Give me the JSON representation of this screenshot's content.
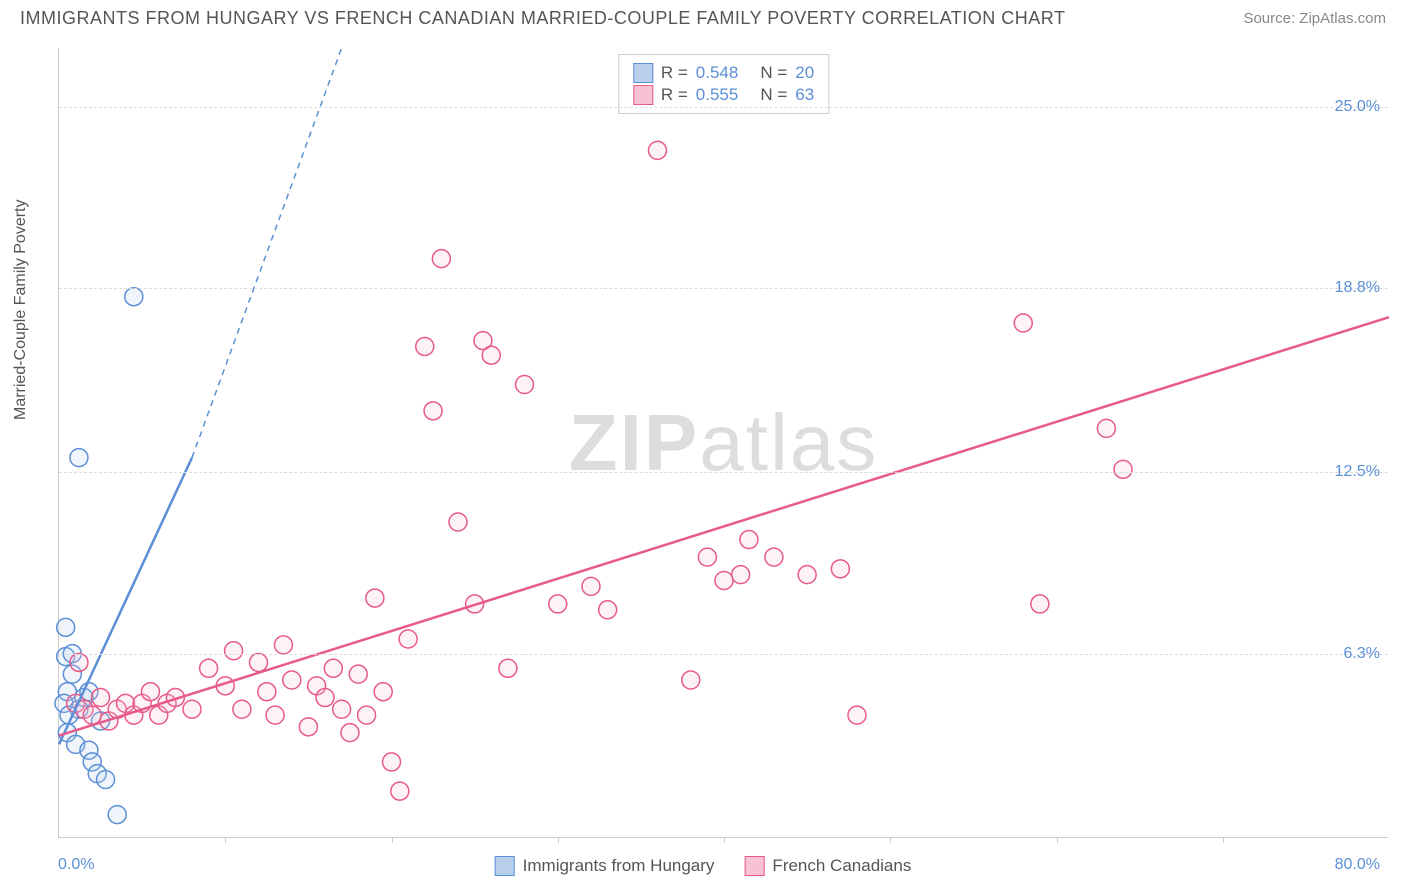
{
  "header": {
    "title": "IMMIGRANTS FROM HUNGARY VS FRENCH CANADIAN MARRIED-COUPLE FAMILY POVERTY CORRELATION CHART",
    "source": "Source: ZipAtlas.com"
  },
  "watermark": {
    "prefix": "ZIP",
    "suffix": "atlas"
  },
  "chart": {
    "type": "scatter",
    "background_color": "#ffffff",
    "grid_color": "#dddddd",
    "axis_color": "#cccccc",
    "tick_label_color": "#5b8fd6",
    "text_color": "#555555",
    "ylabel": "Married-Couple Family Poverty",
    "xlim": [
      0,
      80
    ],
    "ylim": [
      0,
      27
    ],
    "xticks_minor_step": 10,
    "yticks": [
      {
        "value": 6.3,
        "label": "6.3%"
      },
      {
        "value": 12.5,
        "label": "12.5%"
      },
      {
        "value": 18.8,
        "label": "18.8%"
      },
      {
        "value": 25.0,
        "label": "25.0%"
      }
    ],
    "xlabel_min": "0.0%",
    "xlabel_max": "80.0%",
    "marker_radius": 9,
    "marker_stroke_width": 1.5,
    "marker_fill_opacity": 0.22,
    "series": [
      {
        "name": "Immigrants from Hungary",
        "color": "#5b8fd6",
        "fill": "#b8d0ee",
        "legend_r": "0.548",
        "legend_n": "20",
        "trend": {
          "x1": 0,
          "y1": 3.2,
          "x2": 8,
          "y2": 13.0,
          "dash_to_x": 17,
          "dash_to_y": 27,
          "width": 2.5
        },
        "points": [
          [
            0.4,
            7.2
          ],
          [
            0.4,
            6.2
          ],
          [
            0.8,
            5.6
          ],
          [
            0.5,
            5.0
          ],
          [
            0.3,
            4.6
          ],
          [
            1.2,
            4.4
          ],
          [
            0.6,
            4.2
          ],
          [
            1.5,
            4.8
          ],
          [
            0.5,
            3.6
          ],
          [
            1.0,
            3.2
          ],
          [
            1.8,
            3.0
          ],
          [
            2.0,
            2.6
          ],
          [
            2.3,
            2.2
          ],
          [
            2.8,
            2.0
          ],
          [
            1.8,
            5.0
          ],
          [
            3.5,
            0.8
          ],
          [
            1.2,
            13.0
          ],
          [
            4.5,
            18.5
          ],
          [
            2.5,
            4.0
          ],
          [
            0.8,
            6.3
          ]
        ]
      },
      {
        "name": "French Canadians",
        "color": "#e85a8a",
        "fill": "#f7c2d4",
        "legend_r": "0.555",
        "legend_n": "63",
        "trend": {
          "x1": 0,
          "y1": 3.5,
          "x2": 80,
          "y2": 17.8,
          "width": 2.5
        },
        "points": [
          [
            1.0,
            4.6
          ],
          [
            1.5,
            4.4
          ],
          [
            2.0,
            4.2
          ],
          [
            2.5,
            4.8
          ],
          [
            3.0,
            4.0
          ],
          [
            3.5,
            4.4
          ],
          [
            4.0,
            4.6
          ],
          [
            4.5,
            4.2
          ],
          [
            5.0,
            4.6
          ],
          [
            5.5,
            5.0
          ],
          [
            6.0,
            4.2
          ],
          [
            6.5,
            4.6
          ],
          [
            7.0,
            4.8
          ],
          [
            8.0,
            4.4
          ],
          [
            9.0,
            5.8
          ],
          [
            10.0,
            5.2
          ],
          [
            10.5,
            6.4
          ],
          [
            11.0,
            4.4
          ],
          [
            12.0,
            6.0
          ],
          [
            12.5,
            5.0
          ],
          [
            13.0,
            4.2
          ],
          [
            13.5,
            6.6
          ],
          [
            14.0,
            5.4
          ],
          [
            15.0,
            3.8
          ],
          [
            15.5,
            5.2
          ],
          [
            16.0,
            4.8
          ],
          [
            16.5,
            5.8
          ],
          [
            17.0,
            4.4
          ],
          [
            17.5,
            3.6
          ],
          [
            18.0,
            5.6
          ],
          [
            18.5,
            4.2
          ],
          [
            19.0,
            8.2
          ],
          [
            19.5,
            5.0
          ],
          [
            20.0,
            2.6
          ],
          [
            20.5,
            1.6
          ],
          [
            21.0,
            6.8
          ],
          [
            22.0,
            16.8
          ],
          [
            22.5,
            14.6
          ],
          [
            23.0,
            19.8
          ],
          [
            24.0,
            10.8
          ],
          [
            25.0,
            8.0
          ],
          [
            25.5,
            17.0
          ],
          [
            26.0,
            16.5
          ],
          [
            27.0,
            5.8
          ],
          [
            28.0,
            15.5
          ],
          [
            30.0,
            8.0
          ],
          [
            32.0,
            8.6
          ],
          [
            33.0,
            7.8
          ],
          [
            36.0,
            23.5
          ],
          [
            38.0,
            5.4
          ],
          [
            39.0,
            9.6
          ],
          [
            40.0,
            8.8
          ],
          [
            41.0,
            9.0
          ],
          [
            41.5,
            10.2
          ],
          [
            43.0,
            9.6
          ],
          [
            45.0,
            9.0
          ],
          [
            47.0,
            9.2
          ],
          [
            48.0,
            4.2
          ],
          [
            58.0,
            17.6
          ],
          [
            59.0,
            8.0
          ],
          [
            63.0,
            14.0
          ],
          [
            64.0,
            12.6
          ],
          [
            1.2,
            6.0
          ]
        ]
      }
    ]
  },
  "legend_bottom": {
    "items": [
      {
        "label": "Immigrants from Hungary",
        "border": "#5b8fd6",
        "fill": "#b8d0ee"
      },
      {
        "label": "French Canadians",
        "border": "#e85a8a",
        "fill": "#f7c2d4"
      }
    ]
  }
}
